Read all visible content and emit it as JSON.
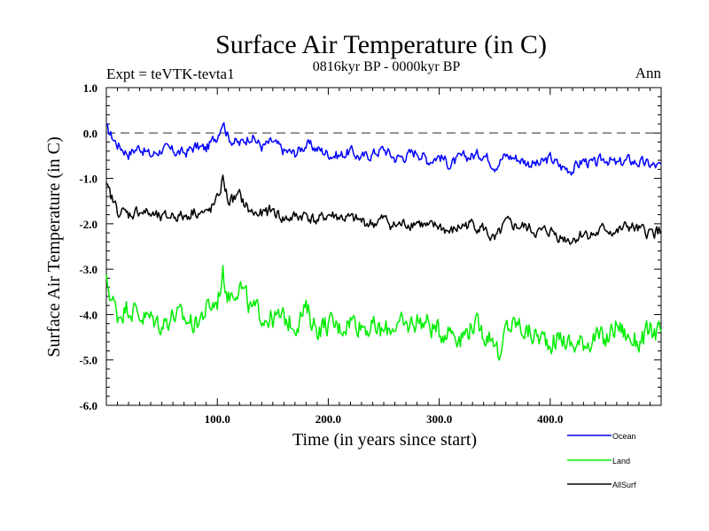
{
  "chart_data": {
    "type": "line",
    "title": "Surface Air Temperature (in C)",
    "subtitle": "0816kyr BP - 0000kyr BP",
    "expt_label": "Expt = teVTK-tevta1",
    "season_label": "Ann",
    "xlabel": "Time (in years since start)",
    "ylabel": "Surface Air Temperature (in C)",
    "xlim": [
      0,
      500
    ],
    "ylim": [
      -6.0,
      1.0
    ],
    "x_ticks": [
      100,
      200,
      300,
      400
    ],
    "x_tick_labels": [
      "100.0",
      "200.0",
      "300.0",
      "400.0"
    ],
    "y_ticks": [
      1,
      0,
      -1,
      -2,
      -3,
      -4,
      -5,
      -6
    ],
    "y_tick_labels": [
      "1.0",
      "0.0",
      "-1.0",
      "-2.0",
      "-3.0",
      "-4.0",
      "-5.0",
      "-6.0"
    ],
    "reference_line": 0.0,
    "legend_position": "bottom-right",
    "series": [
      {
        "name": "Ocean",
        "color": "#0000ff",
        "x": [
          0,
          10,
          20,
          30,
          40,
          50,
          60,
          70,
          80,
          90,
          100,
          105,
          110,
          120,
          130,
          140,
          150,
          160,
          170,
          180,
          190,
          200,
          210,
          220,
          230,
          240,
          250,
          260,
          270,
          280,
          290,
          300,
          310,
          320,
          330,
          340,
          350,
          360,
          370,
          380,
          390,
          400,
          410,
          420,
          430,
          440,
          450,
          460,
          470,
          480,
          490,
          500
        ],
        "values": [
          0.1,
          -0.25,
          -0.45,
          -0.3,
          -0.5,
          -0.35,
          -0.4,
          -0.45,
          -0.3,
          -0.35,
          -0.05,
          0.3,
          -0.1,
          -0.25,
          -0.05,
          -0.3,
          -0.2,
          -0.4,
          -0.45,
          -0.25,
          -0.35,
          -0.45,
          -0.5,
          -0.4,
          -0.55,
          -0.45,
          -0.35,
          -0.55,
          -0.5,
          -0.4,
          -0.6,
          -0.5,
          -0.7,
          -0.55,
          -0.5,
          -0.45,
          -0.7,
          -0.5,
          -0.55,
          -0.65,
          -0.7,
          -0.55,
          -0.75,
          -0.8,
          -0.6,
          -0.7,
          -0.55,
          -0.7,
          -0.6,
          -0.65,
          -0.7,
          -0.75
        ]
      },
      {
        "name": "Land",
        "color": "#00ee00",
        "x": [
          0,
          10,
          20,
          30,
          40,
          50,
          60,
          70,
          80,
          90,
          100,
          105,
          110,
          120,
          130,
          140,
          150,
          160,
          170,
          180,
          190,
          200,
          210,
          220,
          230,
          240,
          250,
          260,
          270,
          280,
          290,
          300,
          310,
          320,
          330,
          340,
          350,
          355,
          360,
          370,
          380,
          390,
          400,
          410,
          420,
          430,
          440,
          450,
          460,
          470,
          480,
          490,
          500
        ],
        "values": [
          -3.3,
          -4.0,
          -3.8,
          -4.0,
          -4.1,
          -4.2,
          -4.0,
          -4.1,
          -4.2,
          -3.9,
          -3.7,
          -3.1,
          -3.6,
          -3.3,
          -3.9,
          -4.0,
          -4.1,
          -4.1,
          -4.2,
          -3.9,
          -4.3,
          -4.2,
          -4.3,
          -4.1,
          -4.2,
          -4.3,
          -4.4,
          -4.2,
          -4.3,
          -4.1,
          -4.2,
          -4.4,
          -4.3,
          -4.5,
          -4.2,
          -4.4,
          -4.5,
          -5.1,
          -4.3,
          -4.2,
          -4.4,
          -4.5,
          -4.6,
          -4.5,
          -4.7,
          -4.6,
          -4.5,
          -4.6,
          -4.2,
          -4.5,
          -4.6,
          -4.4,
          -4.4
        ]
      },
      {
        "name": "AllSurf",
        "color": "#000000",
        "x": [
          0,
          10,
          20,
          30,
          40,
          50,
          60,
          70,
          80,
          90,
          100,
          105,
          110,
          120,
          130,
          140,
          150,
          160,
          170,
          180,
          190,
          200,
          210,
          220,
          230,
          240,
          250,
          260,
          270,
          280,
          290,
          300,
          310,
          320,
          330,
          340,
          350,
          360,
          370,
          380,
          390,
          400,
          410,
          420,
          430,
          440,
          450,
          460,
          470,
          480,
          490,
          500
        ],
        "values": [
          -1.2,
          -1.7,
          -1.8,
          -1.7,
          -1.8,
          -1.9,
          -1.8,
          -1.85,
          -1.7,
          -1.8,
          -1.5,
          -1.0,
          -1.5,
          -1.4,
          -1.75,
          -1.8,
          -1.7,
          -1.9,
          -1.85,
          -1.8,
          -1.95,
          -1.8,
          -1.85,
          -1.9,
          -1.95,
          -2.0,
          -1.9,
          -2.05,
          -2.0,
          -1.95,
          -2.1,
          -2.05,
          -2.2,
          -2.05,
          -2.0,
          -2.1,
          -2.4,
          -2.0,
          -2.05,
          -2.1,
          -2.2,
          -2.15,
          -2.3,
          -2.35,
          -2.2,
          -2.25,
          -2.1,
          -2.2,
          -2.05,
          -2.15,
          -2.2,
          -2.15
        ]
      }
    ]
  }
}
